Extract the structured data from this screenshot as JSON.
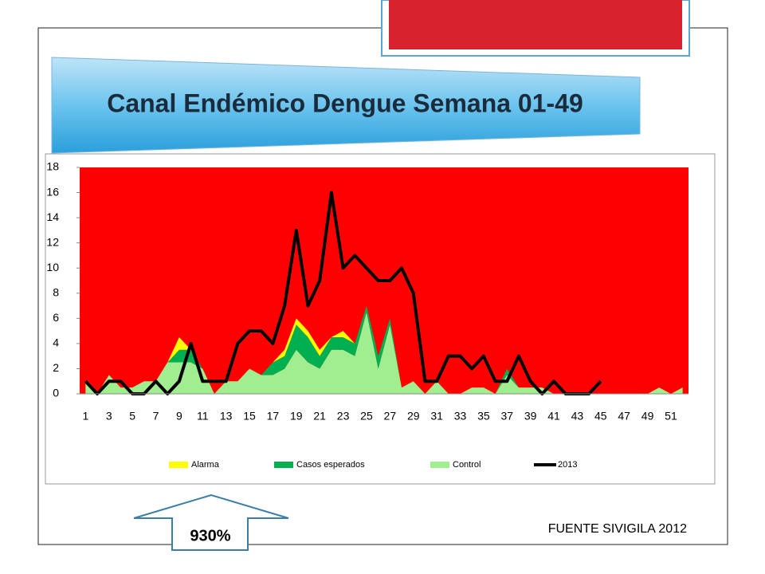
{
  "chart_data": {
    "type": "area",
    "title": "Canal Endémico Dengue Semana 01-49",
    "categories": [
      1,
      null,
      3,
      null,
      5,
      null,
      7,
      null,
      9,
      null,
      11,
      null,
      13,
      null,
      15,
      null,
      17,
      null,
      19,
      null,
      21,
      null,
      23,
      null,
      25,
      null,
      27,
      null,
      29,
      null,
      31,
      null,
      33,
      null,
      35,
      null,
      37,
      null,
      39,
      null,
      41,
      null,
      43,
      null,
      45,
      null,
      47,
      null,
      49,
      null,
      51,
      null
    ],
    "ylim": [
      0,
      18
    ],
    "yticks": [
      0,
      2,
      4,
      6,
      8,
      10,
      12,
      14,
      16,
      18
    ],
    "plot_background": "#ff0000",
    "stacked": true,
    "series": [
      {
        "name": "Control",
        "color": "#a0ee90",
        "type": "area",
        "values": [
          1,
          0,
          1.5,
          0.5,
          0.5,
          1,
          1,
          2.5,
          2.5,
          2.5,
          2,
          0,
          1,
          1,
          2,
          1.5,
          1.5,
          2,
          3.5,
          2.5,
          2,
          3.5,
          3.5,
          3,
          6.5,
          2,
          5.5,
          0.5,
          1,
          0,
          1,
          0,
          0,
          0.5,
          0.5,
          0,
          1.5,
          0.5,
          0.5,
          0.5,
          0,
          0,
          0,
          0,
          0,
          0,
          0,
          0,
          0,
          0.5,
          0,
          0.5
        ]
      },
      {
        "name": "Casos esperados",
        "color": "#00b050",
        "type": "area",
        "values": [
          0,
          0,
          0,
          0,
          0,
          0,
          0,
          0,
          1,
          1,
          0,
          0,
          0,
          0,
          0,
          0,
          1,
          1,
          2,
          2,
          1,
          1,
          1,
          1,
          0.5,
          1,
          0.5,
          0,
          0,
          0,
          0,
          0,
          0,
          0,
          0,
          0,
          0.5,
          0,
          0,
          0,
          0,
          0,
          0,
          0,
          0,
          0,
          0,
          0,
          0,
          0,
          0,
          0
        ]
      },
      {
        "name": "Alarma",
        "color": "#ffff00",
        "type": "area",
        "values": [
          0,
          0,
          0,
          0,
          0,
          0,
          0,
          0,
          1,
          0,
          0,
          0,
          0,
          0,
          0,
          0,
          0,
          0.5,
          0.5,
          0.5,
          0.5,
          0,
          0.5,
          0,
          0,
          0,
          0,
          0,
          0,
          0,
          0,
          0,
          0,
          0,
          0,
          0,
          0,
          0,
          0,
          0,
          0,
          0,
          0,
          0,
          0,
          0,
          0,
          0,
          0,
          0,
          0,
          0
        ]
      },
      {
        "name": "2013",
        "color": "#000000",
        "type": "line",
        "values": [
          1,
          0,
          1,
          1,
          0,
          0,
          1,
          0,
          1,
          4,
          1,
          1,
          1,
          4,
          5,
          5,
          4,
          7,
          13,
          7,
          9,
          16,
          10,
          11,
          10,
          9,
          9,
          10,
          8,
          1,
          1,
          3,
          3,
          2,
          3,
          1,
          1,
          3,
          1,
          0,
          1,
          0,
          0,
          0,
          1,
          null,
          null,
          null,
          null,
          null,
          null,
          null
        ]
      }
    ],
    "legend_order": [
      2,
      1,
      0,
      3
    ],
    "annotations": [
      "930%",
      "FUENTE SIVIGILA 2012"
    ]
  }
}
